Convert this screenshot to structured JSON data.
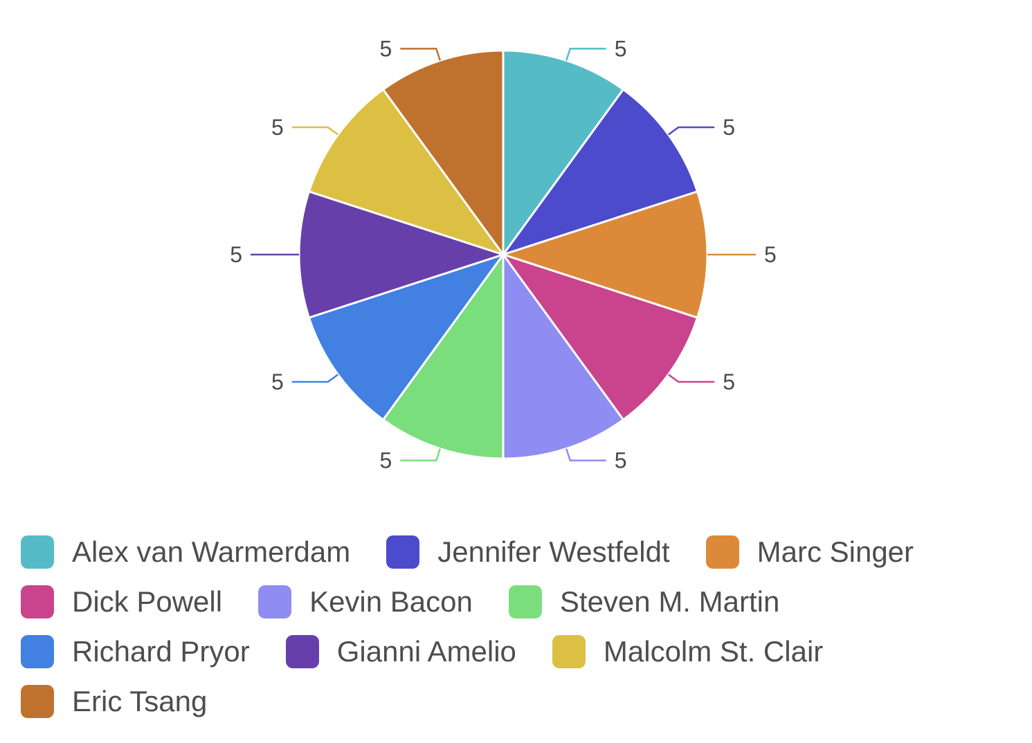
{
  "chart_data": {
    "type": "pie",
    "categories": [
      "Alex van Warmerdam",
      "Jennifer Westfeldt",
      "Marc Singer",
      "Dick Powell",
      "Kevin Bacon",
      "Steven M. Martin",
      "Richard Pryor",
      "Gianni Amelio",
      "Malcolm St. Clair",
      "Eric Tsang"
    ],
    "values": [
      5,
      5,
      5,
      5,
      5,
      5,
      5,
      5,
      5,
      5
    ],
    "colors": [
      "#55bcc7",
      "#4b4bcb",
      "#dc8a39",
      "#c9448c",
      "#8f8cf2",
      "#7bde7d",
      "#4280e1",
      "#673fab",
      "#dbc043",
      "#bf722e"
    ],
    "data_labels": [
      "5",
      "5",
      "5",
      "5",
      "5",
      "5",
      "5",
      "5",
      "5",
      "5"
    ],
    "legend_position": "bottom"
  }
}
